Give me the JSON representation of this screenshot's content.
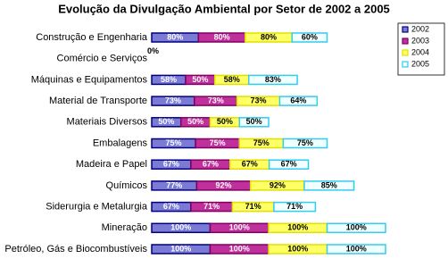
{
  "chart_data": {
    "type": "stacked-barh",
    "title": "Evolução da Divulgação Ambiental por Setor de 2002 a 2005",
    "categories": [
      "Construção e Engenharia",
      "Comércio e Serviços",
      "Máquinas e Equipamentos",
      "Material de Transporte",
      "Materiais Diversos",
      "Embalagens",
      "Madeira e Papel",
      "Químicos",
      "Siderurgia e Metalurgia",
      "Mineração",
      "Petróleo, Gás e Biocombustíveis"
    ],
    "series": [
      {
        "name": "2002",
        "color": "#7b7bd6",
        "edgecolor": "#000080",
        "values": [
          80,
          0,
          58,
          73,
          50,
          75,
          67,
          77,
          67,
          100,
          100
        ],
        "value_labels": [
          "80%",
          "0%",
          "58%",
          "73%",
          "50%",
          "75%",
          "67%",
          "77%",
          "67%",
          "100%",
          "100%"
        ]
      },
      {
        "name": "2003",
        "color": "#c0309c",
        "edgecolor": "#800060",
        "values": [
          80,
          null,
          50,
          73,
          50,
          75,
          67,
          92,
          71,
          100,
          100
        ],
        "value_labels": [
          "80%",
          null,
          "50%",
          "73%",
          "50%",
          "75%",
          "67%",
          "92%",
          "71%",
          "100%",
          "100%"
        ]
      },
      {
        "name": "2004",
        "color": "#ffff66",
        "edgecolor": "#e0e000",
        "values": [
          80,
          null,
          58,
          73,
          50,
          75,
          67,
          92,
          71,
          100,
          100
        ],
        "value_labels": [
          "80%",
          null,
          "58%",
          "73%",
          "50%",
          "75%",
          "67%",
          "92%",
          "71%",
          "100%",
          "100%"
        ]
      },
      {
        "name": "2005",
        "color": "#f0ffff",
        "edgecolor": "#33ccee",
        "values": [
          60,
          null,
          83,
          64,
          50,
          75,
          67,
          85,
          71,
          100,
          100
        ],
        "value_labels": [
          "60%",
          null,
          "83%",
          "64%",
          "50%",
          "75%",
          "67%",
          "85%",
          "71%",
          "100%",
          "100%"
        ]
      }
    ]
  }
}
